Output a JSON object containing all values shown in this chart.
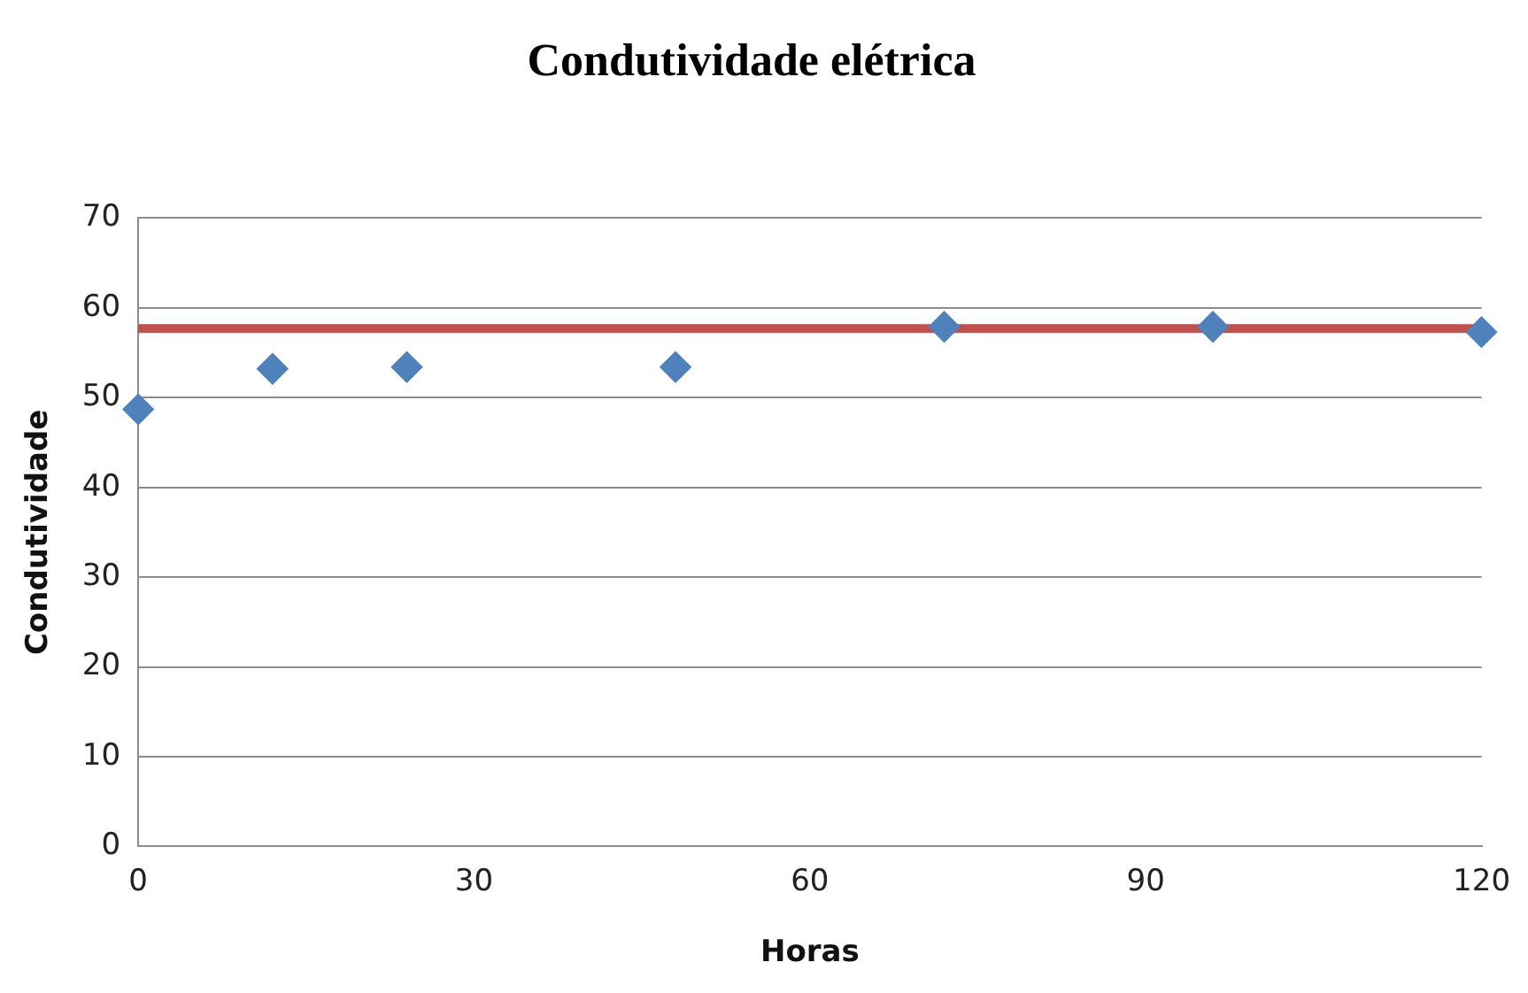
{
  "chart_data": {
    "type": "scatter",
    "title": "Condutividade elétrica",
    "xlabel": "Horas",
    "ylabel": "Condutividade",
    "x": [
      0,
      12,
      24,
      48,
      72,
      96,
      120
    ],
    "series": [
      {
        "color": "#4f81bd",
        "values": [
          48.7,
          53.2,
          53.4,
          53.4,
          57.9,
          57.9,
          57.3
        ]
      }
    ],
    "xlim": [
      0,
      120
    ],
    "xticks": [
      0,
      30,
      60,
      90,
      120
    ],
    "ylim": [
      0,
      70
    ],
    "yticks": [
      0,
      10,
      20,
      30,
      40,
      50,
      60,
      70
    ],
    "ref_lines": [
      {
        "axis": "y",
        "value": 57.7,
        "color": "#c0504d"
      }
    ],
    "grid": "y",
    "marker": "diamond",
    "legend": false
  }
}
